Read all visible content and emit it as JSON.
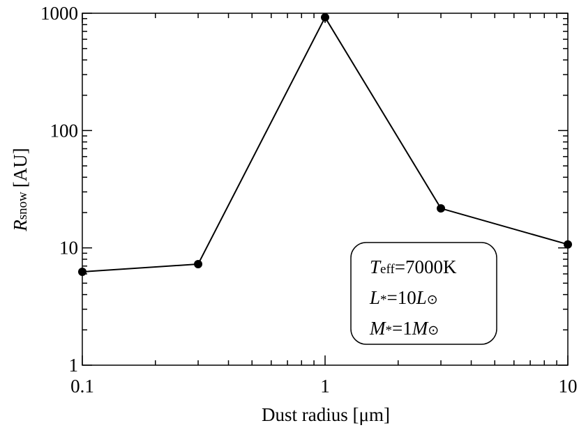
{
  "chart_data": {
    "type": "line",
    "x_label": "Dust radius [μm]",
    "y_label": {
      "symbol": "R",
      "subscript": "snow",
      "unit": "[AU]"
    },
    "x": [
      0.1,
      0.3,
      1,
      3,
      10
    ],
    "series": [
      {
        "color": "#000000",
        "values": [
          6.25,
          7.27,
          922,
          21.7,
          10.7
        ]
      }
    ],
    "xscale": "log",
    "yscale": "log",
    "xlim": [
      0.1,
      10
    ],
    "ylim": [
      1,
      1000
    ],
    "xticks": [
      0.1,
      1,
      10
    ],
    "yticks": [
      1,
      10,
      100,
      1000
    ],
    "xminorticks": [
      0.2,
      0.3,
      0.4,
      0.5,
      0.6,
      0.7,
      0.8,
      0.9,
      2,
      3,
      4,
      5,
      6,
      7,
      8,
      9
    ],
    "yminorticks": [
      2,
      3,
      4,
      5,
      6,
      7,
      8,
      9,
      20,
      30,
      40,
      50,
      60,
      70,
      80,
      90,
      200,
      300,
      400,
      500,
      600,
      700,
      800,
      900
    ],
    "annotation": [
      {
        "symbol": "T",
        "subscript": "eff",
        "rest": "=7000K"
      },
      {
        "symbol": "L",
        "subscript": "*",
        "rest": "=10",
        "symbol2": "L",
        "subscript2": "⊙"
      },
      {
        "symbol": "M",
        "subscript": "*",
        "rest": "=1",
        "symbol2": "M",
        "subscript2": "⊙"
      }
    ]
  }
}
